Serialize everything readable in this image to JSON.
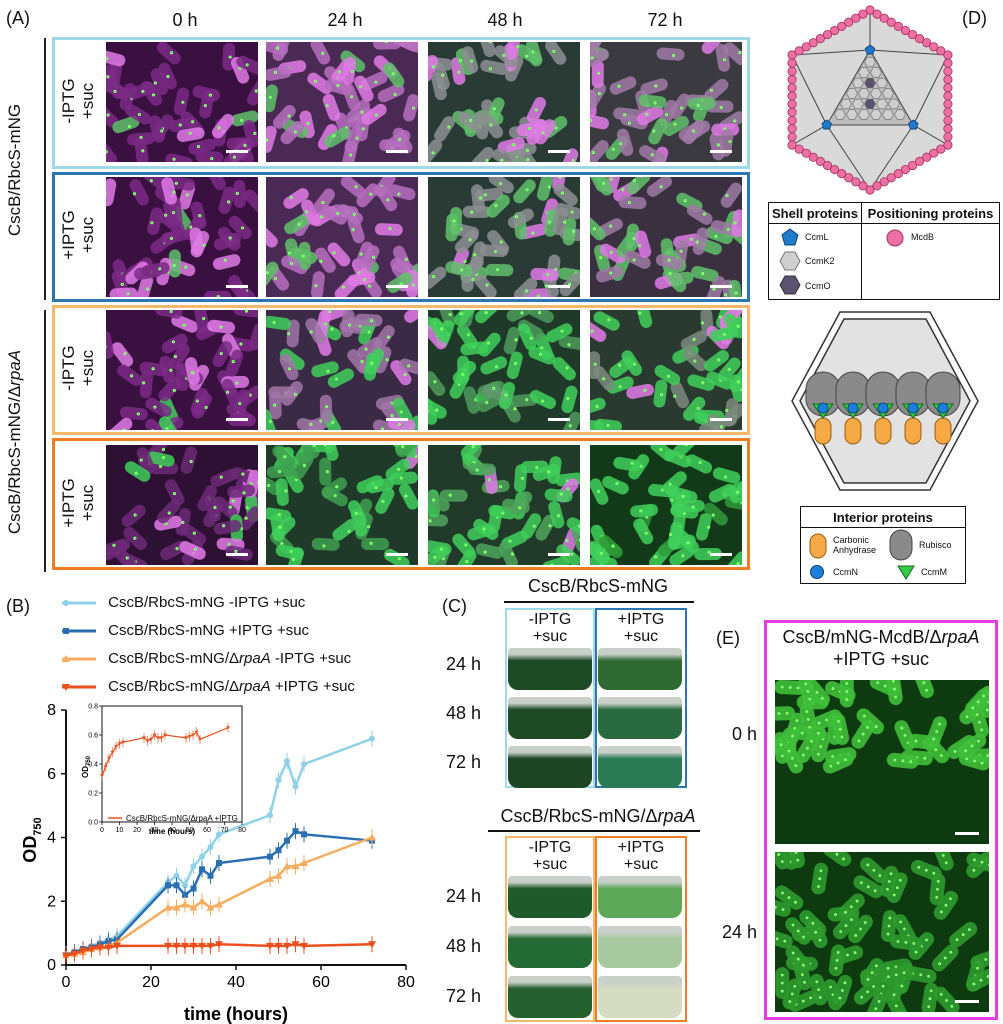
{
  "panelA": {
    "label": "(A)",
    "timepoints": [
      "0 h",
      "24 h",
      "48 h",
      "72 h"
    ],
    "strain1": "CscB/RbcS-mNG",
    "strain2_prefix": "CscB/RbcS-mNG/Δ",
    "strain2_gene": "rpaA",
    "rows": [
      {
        "line1": "-IPTG",
        "line2": "+suc",
        "color": "#9fd8e6"
      },
      {
        "line1": "+IPTG",
        "line2": "+suc",
        "color": "#2a77b4"
      },
      {
        "line1": "-IPTG",
        "line2": "+suc",
        "color": "#f6b96b"
      },
      {
        "line1": "+IPTG",
        "line2": "+suc",
        "color": "#ef7d22"
      }
    ]
  },
  "panelB": {
    "label": "(B)",
    "legend": [
      {
        "prefix": "CscB/RbcS-mNG -IPTG +suc",
        "gene": "",
        "suffix": "",
        "color": "#8fd1e8"
      },
      {
        "prefix": "CscB/RbcS-mNG +IPTG +suc",
        "gene": "",
        "suffix": "",
        "color": "#2a6fb2"
      },
      {
        "prefix": "CscB/RbcS-mNG/Δ",
        "gene": "rpaA",
        "suffix": " -IPTG +suc",
        "color": "#f6ad5f"
      },
      {
        "prefix": "CscB/RbcS-mNG/Δ",
        "gene": "rpaA",
        "suffix": " +IPTG +suc",
        "color": "#ea4f1d"
      }
    ],
    "ylabel": "OD",
    "ylabel_sub": "750",
    "xlabel": "time (hours)",
    "inset_ylabel": "OD",
    "inset_ylabel_sub": "750",
    "inset_xlabel": "time (hours)",
    "inset_legend": "CscB/RbcS-mNG/ΔrpaA +IPTG"
  },
  "chart_data": [
    {
      "type": "line",
      "xlabel": "time (hours)",
      "ylabel": "OD750",
      "xlim": [
        0,
        80
      ],
      "ylim": [
        0,
        8
      ],
      "xticks": [
        0,
        20,
        40,
        60,
        80
      ],
      "yticks": [
        0,
        2,
        4,
        6,
        8
      ],
      "series": [
        {
          "name": "CscB/RbcS-mNG -IPTG +suc",
          "color": "#8fd1e8",
          "x": [
            0,
            2,
            4,
            6,
            8,
            10,
            12,
            24,
            26,
            28,
            30,
            32,
            34,
            36,
            48,
            50,
            52,
            54,
            56,
            72
          ],
          "y": [
            0.35,
            0.4,
            0.5,
            0.6,
            0.7,
            0.8,
            0.9,
            2.6,
            2.8,
            2.5,
            3.1,
            3.4,
            3.7,
            4.1,
            4.7,
            5.8,
            6.4,
            5.6,
            6.3,
            7.1
          ]
        },
        {
          "name": "CscB/RbcS-mNG +IPTG +suc",
          "color": "#2a6fb2",
          "x": [
            0,
            2,
            4,
            6,
            8,
            10,
            12,
            24,
            26,
            28,
            30,
            32,
            34,
            36,
            48,
            50,
            52,
            54,
            56,
            72
          ],
          "y": [
            0.3,
            0.4,
            0.5,
            0.55,
            0.65,
            0.75,
            0.8,
            2.5,
            2.5,
            2.2,
            2.4,
            3.0,
            2.8,
            3.2,
            3.4,
            3.6,
            3.9,
            4.2,
            4.1,
            3.9
          ]
        },
        {
          "name": "CscB/RbcS-mNG/ΔrpaA -IPTG +suc",
          "color": "#f6ad5f",
          "x": [
            0,
            2,
            4,
            6,
            8,
            10,
            12,
            24,
            26,
            28,
            30,
            32,
            34,
            36,
            48,
            50,
            52,
            54,
            56,
            72
          ],
          "y": [
            0.3,
            0.35,
            0.4,
            0.5,
            0.55,
            0.6,
            0.7,
            1.8,
            1.8,
            1.9,
            1.8,
            2.0,
            1.8,
            1.9,
            2.7,
            2.8,
            3.1,
            3.1,
            3.2,
            4.0
          ]
        },
        {
          "name": "CscB/RbcS-mNG/ΔrpaA +IPTG +suc",
          "color": "#ea4f1d",
          "x": [
            0,
            2,
            4,
            6,
            8,
            10,
            12,
            24,
            26,
            28,
            30,
            32,
            34,
            36,
            48,
            50,
            52,
            54,
            56,
            72
          ],
          "y": [
            0.3,
            0.35,
            0.45,
            0.5,
            0.55,
            0.55,
            0.6,
            0.6,
            0.6,
            0.6,
            0.6,
            0.6,
            0.6,
            0.65,
            0.6,
            0.6,
            0.6,
            0.65,
            0.6,
            0.65
          ]
        }
      ]
    },
    {
      "type": "line",
      "xlabel": "time (hours)",
      "ylabel": "OD750",
      "xlim": [
        0,
        80
      ],
      "ylim": [
        0.0,
        0.8
      ],
      "xticks": [
        0,
        10,
        20,
        30,
        40,
        50,
        60,
        70,
        80
      ],
      "yticks": [
        0.0,
        0.2,
        0.4,
        0.6,
        0.8
      ],
      "series": [
        {
          "name": "CscB/RbcS-mNG/ΔrpaA +IPTG",
          "color": "#ea4f1d",
          "x": [
            0,
            2,
            4,
            6,
            8,
            10,
            12,
            24,
            26,
            28,
            30,
            32,
            34,
            36,
            48,
            50,
            52,
            54,
            56,
            72
          ],
          "y": [
            0.32,
            0.38,
            0.44,
            0.48,
            0.52,
            0.54,
            0.55,
            0.58,
            0.56,
            0.57,
            0.6,
            0.58,
            0.58,
            0.6,
            0.58,
            0.59,
            0.6,
            0.62,
            0.57,
            0.65
          ]
        }
      ]
    }
  ],
  "panelC": {
    "label": "(C)",
    "group1_title": "CscB/RbcS-mNG",
    "group2_prefix": "CscB/RbcS-mNG/Δ",
    "group2_gene": "rpaA",
    "col_minus_l1": "-IPTG",
    "col_minus_l2": "+suc",
    "col_plus_l1": "+IPTG",
    "col_plus_l2": "+suc",
    "times": [
      "24 h",
      "48 h",
      "72 h"
    ],
    "box_colors": [
      "#9fd8e6",
      "#2a77b4",
      "#f6b96b",
      "#ef7d22"
    ]
  },
  "panelD": {
    "label": "(D)",
    "shell_header": "Shell proteins",
    "positioning_header": "Positioning proteins",
    "ccmL": "CcmL",
    "ccmK2": "CcmK2",
    "ccmO": "CcmO",
    "mcdB": "McdB",
    "interior_header": "Interior proteins",
    "carbonic": "Carbonic Anhydrase",
    "rubisco": "Rubisco",
    "ccmN": "CcmN",
    "ccmM": "CcmM",
    "colors": {
      "mcdB": "#ee6fa3",
      "ccmL": "#1f7ac9",
      "ccmK2": "#cfcfcf",
      "ccmO": "#5c5270",
      "carbonic": "#f7a945",
      "rubisco": "#8a8a8a",
      "ccmN": "#1c7fe0",
      "ccmM": "#33cc44"
    }
  },
  "panelE": {
    "label": "(E)",
    "title_prefix": "CscB/mNG-McdB/Δ",
    "title_gene": "rpaA",
    "title_line2": "+IPTG +suc",
    "times": [
      "0 h",
      "24 h"
    ],
    "frame_color": "#e23ee0"
  }
}
